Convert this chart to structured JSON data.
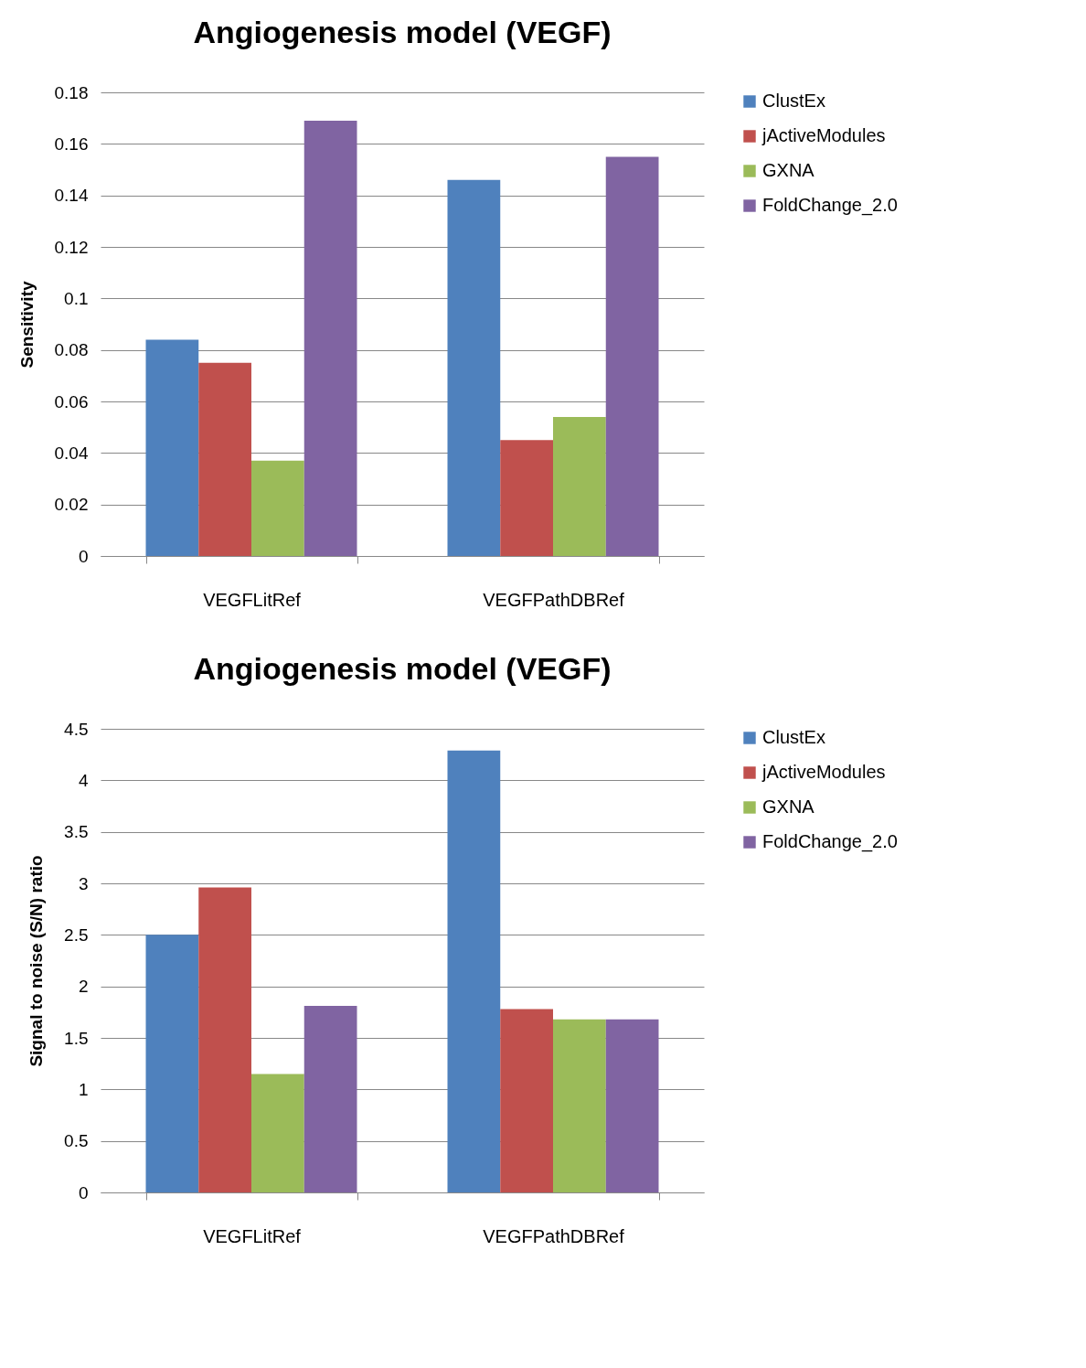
{
  "chart_data": [
    {
      "type": "bar",
      "title": "Angiogenesis model (VEGF)",
      "ylabel": "Sensitivity",
      "categories": [
        "VEGFLitRef",
        "VEGFPathDBRef"
      ],
      "series": [
        {
          "name": "ClustEx",
          "color": "#4f81bd",
          "values": [
            0.084,
            0.146
          ]
        },
        {
          "name": "jActiveModules",
          "color": "#c0504d",
          "values": [
            0.075,
            0.045
          ]
        },
        {
          "name": "GXNA",
          "color": "#9bbb59",
          "values": [
            0.037,
            0.054
          ]
        },
        {
          "name": "FoldChange_2.0",
          "color": "#8064a2",
          "values": [
            0.169,
            0.155
          ]
        }
      ],
      "ylim": [
        0,
        0.18
      ],
      "yticks": [
        0,
        0.02,
        0.04,
        0.06,
        0.08,
        0.1,
        0.12,
        0.14,
        0.16,
        0.18
      ],
      "grid": "y",
      "legend": "right"
    },
    {
      "type": "bar",
      "title": "Angiogenesis model (VEGF)",
      "ylabel": "Signal to noise (S/N) ratio",
      "categories": [
        "VEGFLitRef",
        "VEGFPathDBRef"
      ],
      "series": [
        {
          "name": "ClustEx",
          "color": "#4f81bd",
          "values": [
            2.5,
            4.29
          ]
        },
        {
          "name": "jActiveModules",
          "color": "#c0504d",
          "values": [
            2.96,
            1.78
          ]
        },
        {
          "name": "GXNA",
          "color": "#9bbb59",
          "values": [
            1.15,
            1.68
          ]
        },
        {
          "name": "FoldChange_2.0",
          "color": "#8064a2",
          "values": [
            1.81,
            1.68
          ]
        }
      ],
      "ylim": [
        0,
        4.5
      ],
      "yticks": [
        0,
        0.5,
        1,
        1.5,
        2,
        2.5,
        3,
        3.5,
        4,
        4.5
      ],
      "grid": "y",
      "legend": "right"
    }
  ]
}
